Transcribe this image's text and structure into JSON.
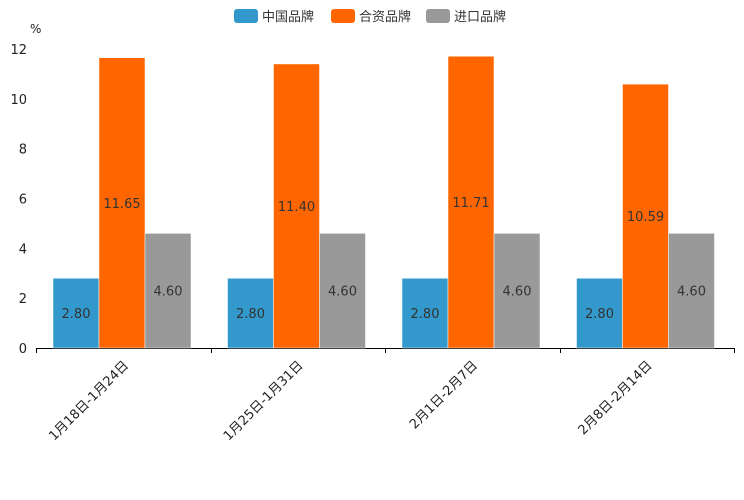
{
  "chart_data": {
    "type": "bar",
    "y_unit_label": "%",
    "categories": [
      "1月18日-1月24日",
      "1月25日-1月31日",
      "2月1日-2月7日",
      "2月8日-2月14日"
    ],
    "series": [
      {
        "name": "中国品牌",
        "color": "#3399cc",
        "values": [
          2.8,
          2.8,
          2.8,
          2.8
        ],
        "labels": [
          "2.80",
          "2.80",
          "2.80",
          "2.80"
        ]
      },
      {
        "name": "合资品牌",
        "color": "#ff6600",
        "values": [
          11.65,
          11.4,
          11.71,
          10.59
        ],
        "labels": [
          "11.65",
          "11.40",
          "11.71",
          "10.59"
        ]
      },
      {
        "name": "进口品牌",
        "color": "#999999",
        "values": [
          4.6,
          4.6,
          4.6,
          4.6
        ],
        "labels": [
          "4.60",
          "4.60",
          "4.60",
          "4.60"
        ]
      }
    ],
    "ylim": [
      0,
      12
    ],
    "yticks": [
      "0",
      "2",
      "4",
      "6",
      "8",
      "10",
      "12"
    ],
    "legend_position": "top-center",
    "grid": false
  }
}
